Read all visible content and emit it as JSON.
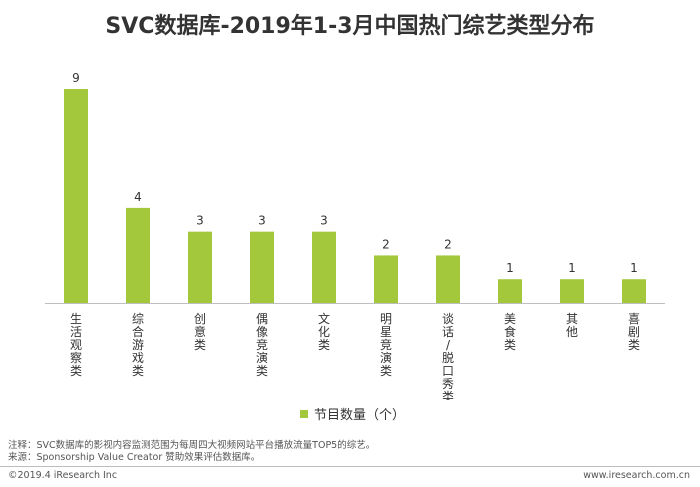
{
  "title": "SVC数据库-2019年1-3月中国热门综艺类型分布",
  "colors": {
    "bar": "#a3c83b",
    "axis": "#bfbfbf",
    "text": "#333333"
  },
  "chart_data": {
    "type": "bar",
    "title": "SVC数据库-2019年1-3月中国热门综艺类型分布",
    "categories": [
      "生活观察类",
      "综合游戏类",
      "创意类",
      "偶像竞演类",
      "文化类",
      "明星竞演类",
      "谈话/脱口秀类",
      "美食类",
      "其他",
      "喜剧类"
    ],
    "series": [
      {
        "name": "节目数量（个）",
        "values": [
          9,
          4,
          3,
          3,
          3,
          2,
          2,
          1,
          1,
          1
        ]
      }
    ],
    "ylim": [
      0,
      9
    ],
    "grid": false,
    "legend": "bottom-center",
    "data_labels": true
  },
  "legend_label": "节目数量（个）",
  "notes": {
    "line1": "注释：SVC数据库的影视内容监测范围为每周四大视频网站平台播放流量TOP5的综艺。",
    "line2": "来源：Sponsorship Value Creator 赞助效果评估数据库。"
  },
  "footer": {
    "left": "©2019.4 iResearch Inc",
    "right": "www.iresearch.com.cn"
  }
}
